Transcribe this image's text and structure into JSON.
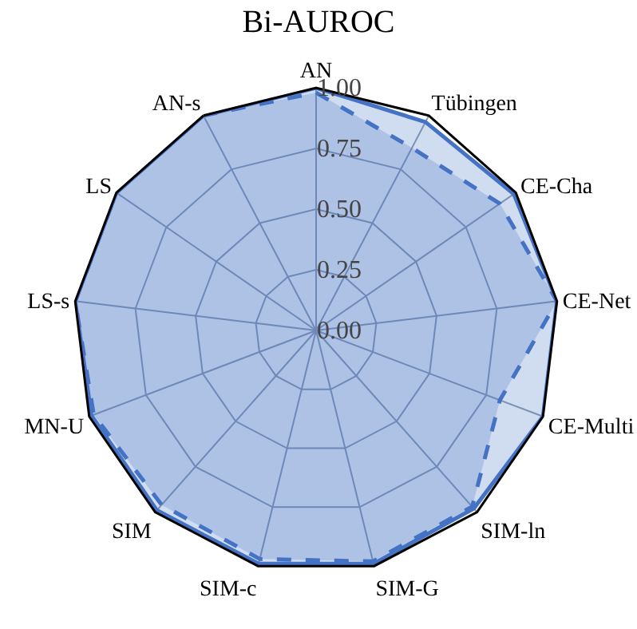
{
  "chart_data": {
    "type": "radar",
    "title": "Bi-AUROC",
    "categories": [
      "AN",
      "Tübingen",
      "CE-Cha",
      "CE-Net",
      "CE-Multi",
      "SIM-ln",
      "SIM-G",
      "SIM-c",
      "SIM",
      "MN-U",
      "LS-s",
      "LS",
      "AN-s"
    ],
    "series": [
      {
        "color": "#4472c4",
        "line_style": "solid",
        "values": [
          1.0,
          0.97,
          0.99,
          1.0,
          1.0,
          0.98,
          0.99,
          0.99,
          0.99,
          0.99,
          1.0,
          1.0,
          1.0
        ]
      },
      {
        "color": "#4472c4",
        "line_style": "dashed",
        "values": [
          0.98,
          0.85,
          0.92,
          1.0,
          0.81,
          0.97,
          0.98,
          0.97,
          0.96,
          0.98,
          1.0,
          1.0,
          1.0
        ]
      }
    ],
    "ylim": [
      0,
      1
    ],
    "yticks": [
      {
        "value": 0,
        "label": "0.00"
      },
      {
        "value": 0.25,
        "label": "0.25"
      },
      {
        "value": 0.5,
        "label": "0.50"
      },
      {
        "value": 0.75,
        "label": "0.75"
      },
      {
        "value": 1,
        "label": "1.00"
      }
    ],
    "grid": true,
    "marker": "none"
  }
}
